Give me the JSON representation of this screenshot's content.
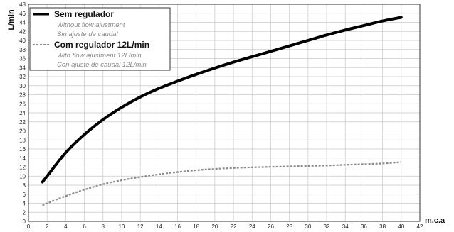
{
  "chart_data": {
    "type": "line",
    "xlabel": "m.c.a",
    "ylabel": "L/min",
    "xlim": [
      0,
      42
    ],
    "ylim": [
      0,
      48
    ],
    "x_ticks": [
      0,
      2,
      4,
      6,
      8,
      10,
      12,
      14,
      16,
      18,
      20,
      22,
      24,
      26,
      28,
      30,
      32,
      34,
      36,
      38,
      40,
      42
    ],
    "y_ticks": [
      0,
      2,
      4,
      6,
      8,
      10,
      12,
      14,
      16,
      18,
      20,
      22,
      24,
      26,
      28,
      30,
      32,
      34,
      36,
      38,
      40,
      42,
      44,
      46,
      48
    ],
    "grid": true,
    "legend_position": "top-left",
    "series": [
      {
        "name": "Sem regulador",
        "subtitles": [
          "Without flow ajustment",
          "Sin ajuste de caudal"
        ],
        "color": "#000000",
        "style": "solid",
        "x": [
          1.5,
          2,
          4,
          6,
          8,
          10,
          12,
          14,
          16,
          18,
          20,
          22,
          24,
          26,
          28,
          30,
          32,
          34,
          36,
          38,
          40
        ],
        "y": [
          8.7,
          10.0,
          15.2,
          19.2,
          22.5,
          25.2,
          27.5,
          29.4,
          31.0,
          32.5,
          33.9,
          35.2,
          36.4,
          37.6,
          38.8,
          40.0,
          41.2,
          42.3,
          43.3,
          44.3,
          45.1
        ]
      },
      {
        "name": "Com regulador 12L/min",
        "subtitles": [
          "With flow ajustment 12L/min",
          "Con ajuste de caudal 12L/min"
        ],
        "color": "#8a8a8a",
        "style": "dashed",
        "x": [
          1.5,
          2,
          4,
          6,
          8,
          10,
          12,
          14,
          16,
          18,
          20,
          22,
          24,
          26,
          28,
          30,
          32,
          34,
          36,
          38,
          40
        ],
        "y": [
          3.5,
          4.0,
          5.6,
          7.0,
          8.2,
          9.1,
          9.8,
          10.4,
          10.9,
          11.3,
          11.6,
          11.8,
          11.95,
          12.05,
          12.15,
          12.25,
          12.35,
          12.5,
          12.65,
          12.8,
          13.1
        ]
      }
    ]
  }
}
